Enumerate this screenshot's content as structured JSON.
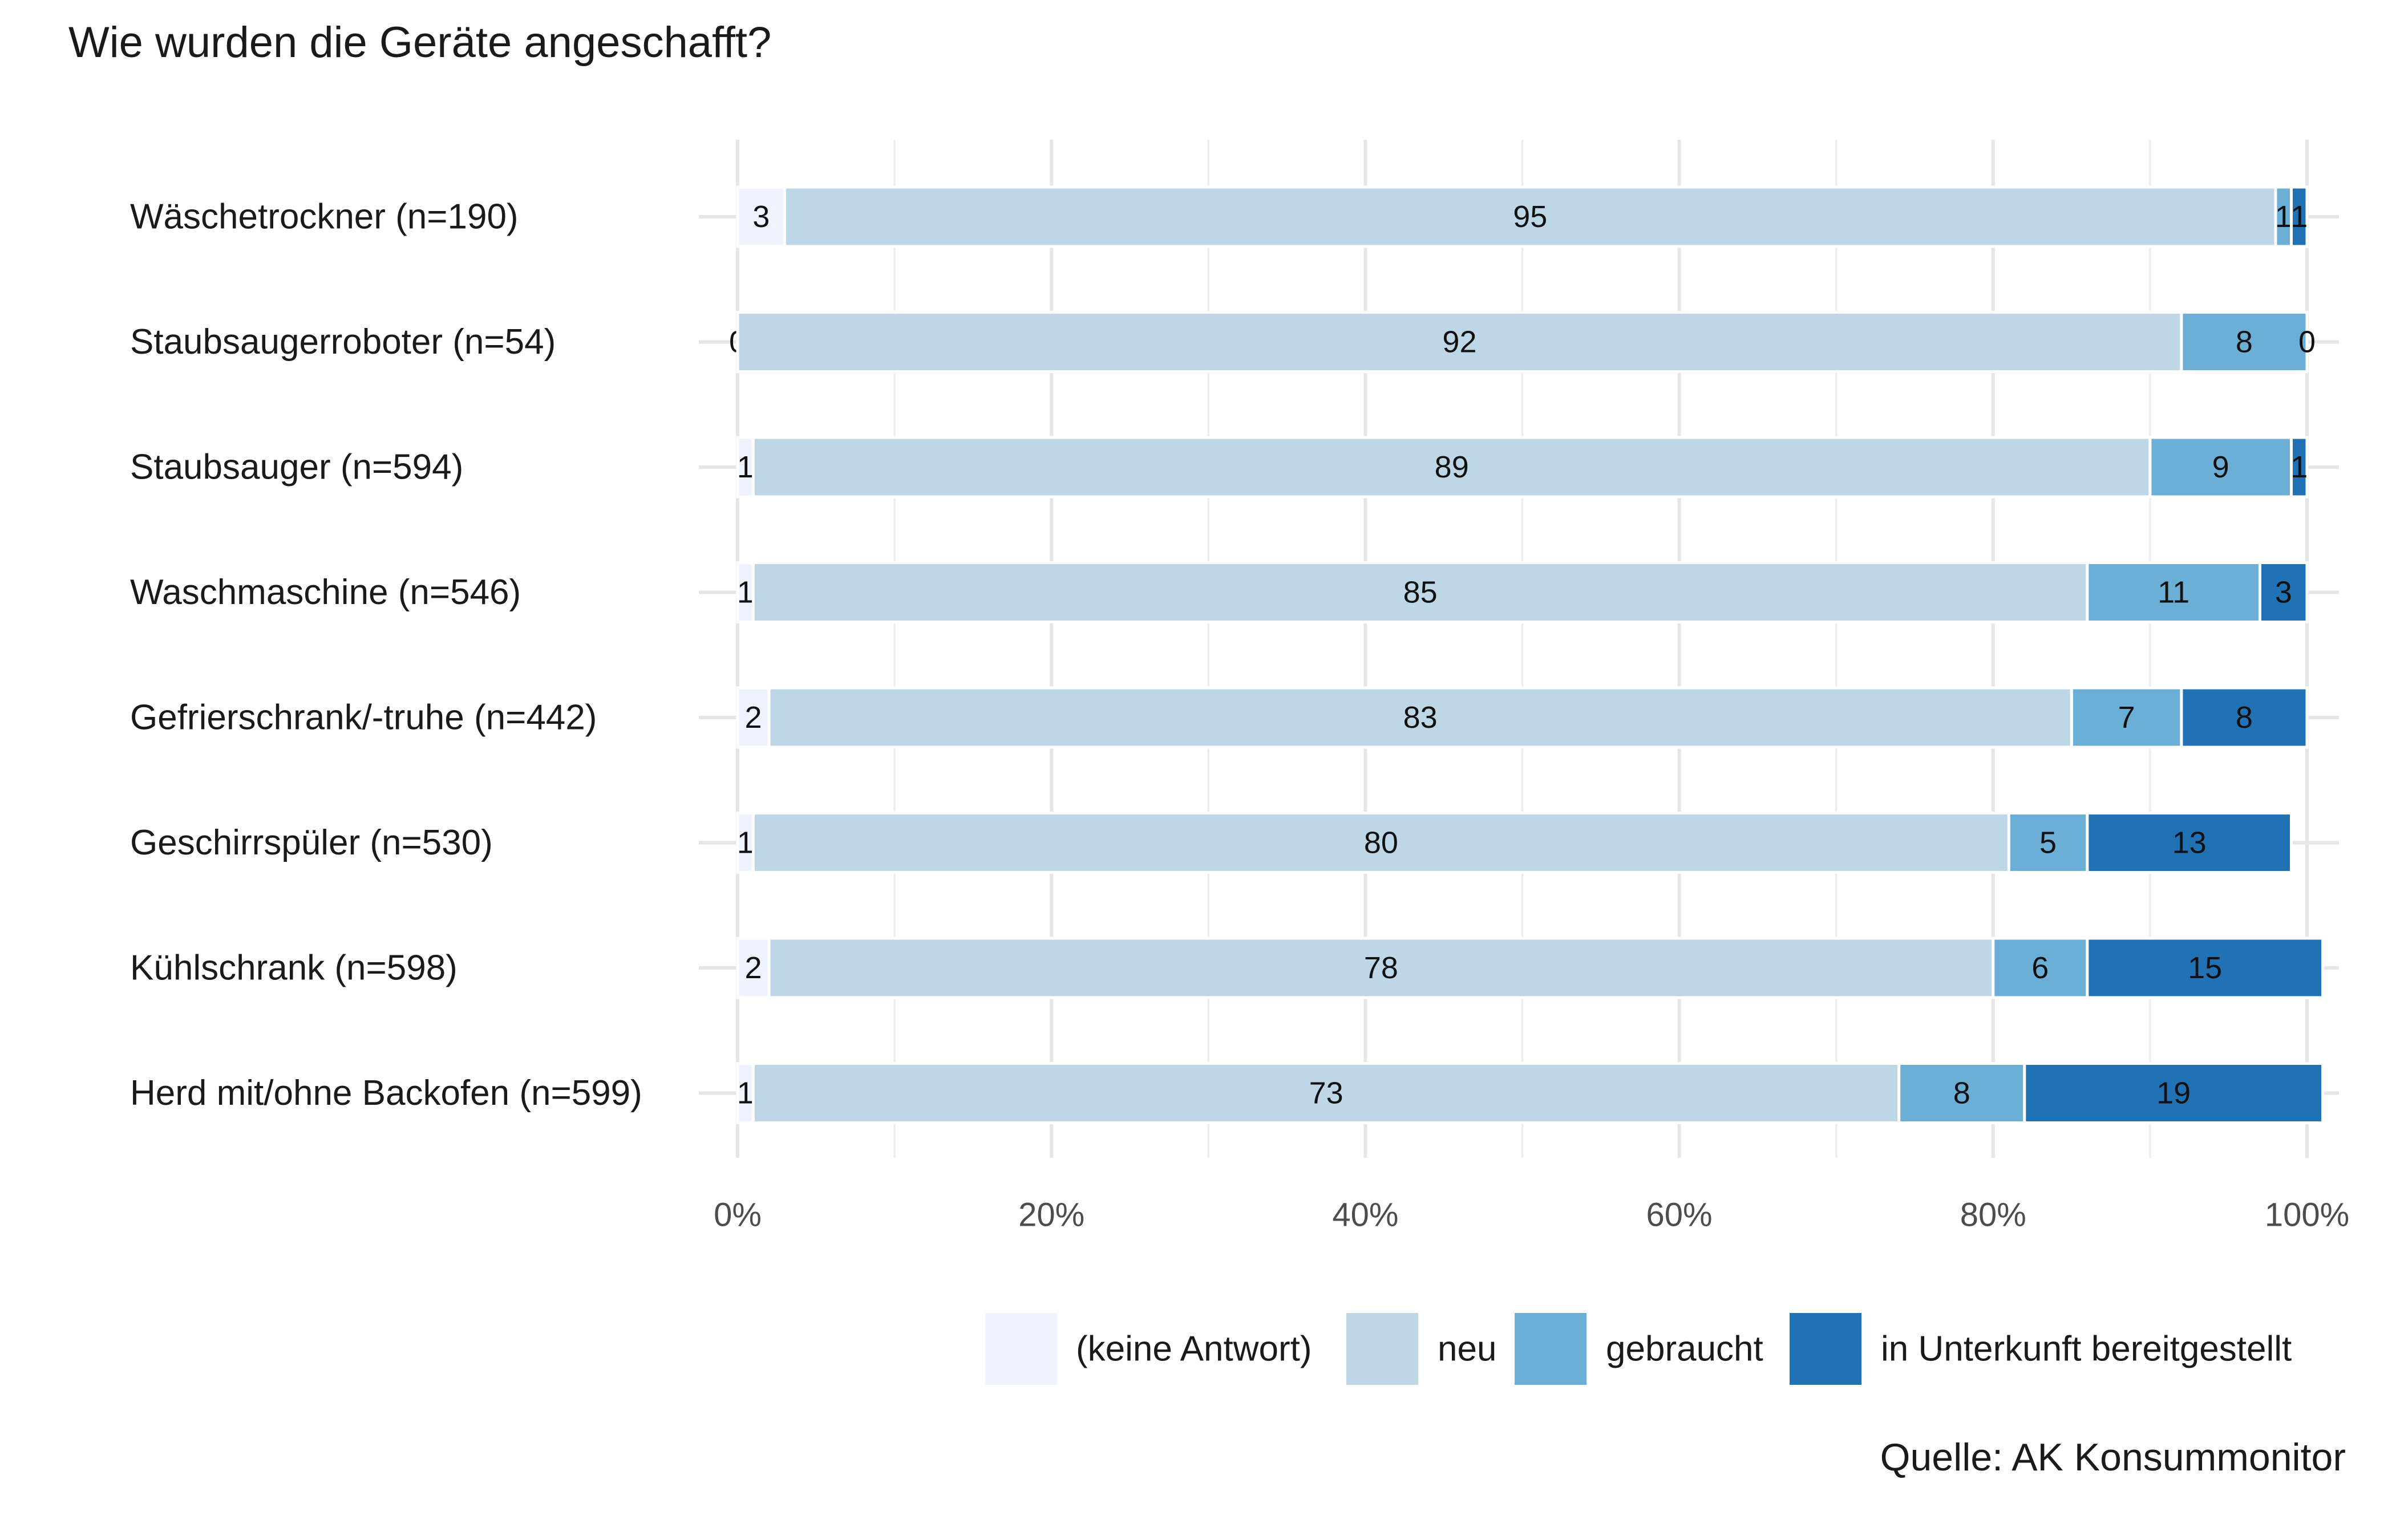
{
  "chart_data": {
    "type": "bar",
    "orientation": "horizontal",
    "stacked": true,
    "title": "Wie wurden die Geräte angeschafft?",
    "source": "Quelle: AK Konsummonitor",
    "categories": [
      "Wäschetrockner (n=190)",
      "Staubsaugerroboter (n=54)",
      "Staubsauger (n=594)",
      "Waschmaschine (n=546)",
      "Gefrierschrank/-truhe (n=442)",
      "Geschirrspüler (n=530)",
      "Kühlschrank (n=598)",
      "Herd mit/ohne Backofen (n=599)"
    ],
    "series": [
      {
        "name": "(keine Antwort)",
        "color": "#eff3ff",
        "values": [
          3,
          0,
          1,
          1,
          2,
          1,
          2,
          1
        ]
      },
      {
        "name": "neu",
        "color": "#bdd7e7",
        "values": [
          95,
          92,
          89,
          85,
          83,
          80,
          78,
          73
        ]
      },
      {
        "name": "gebraucht",
        "color": "#6baed6",
        "values": [
          1,
          8,
          9,
          11,
          7,
          5,
          6,
          8
        ]
      },
      {
        "name": "in Unterkunft bereitgestellt",
        "color": "#2171b5",
        "values": [
          1,
          0,
          1,
          3,
          8,
          13,
          15,
          19
        ]
      }
    ],
    "xlim": [
      0,
      100
    ],
    "xticks": [
      0,
      20,
      40,
      60,
      80,
      100
    ],
    "xtick_labels": [
      "0%",
      "20%",
      "40%",
      "60%",
      "80%",
      "100%"
    ],
    "legend_position": "bottom",
    "grid": true
  }
}
